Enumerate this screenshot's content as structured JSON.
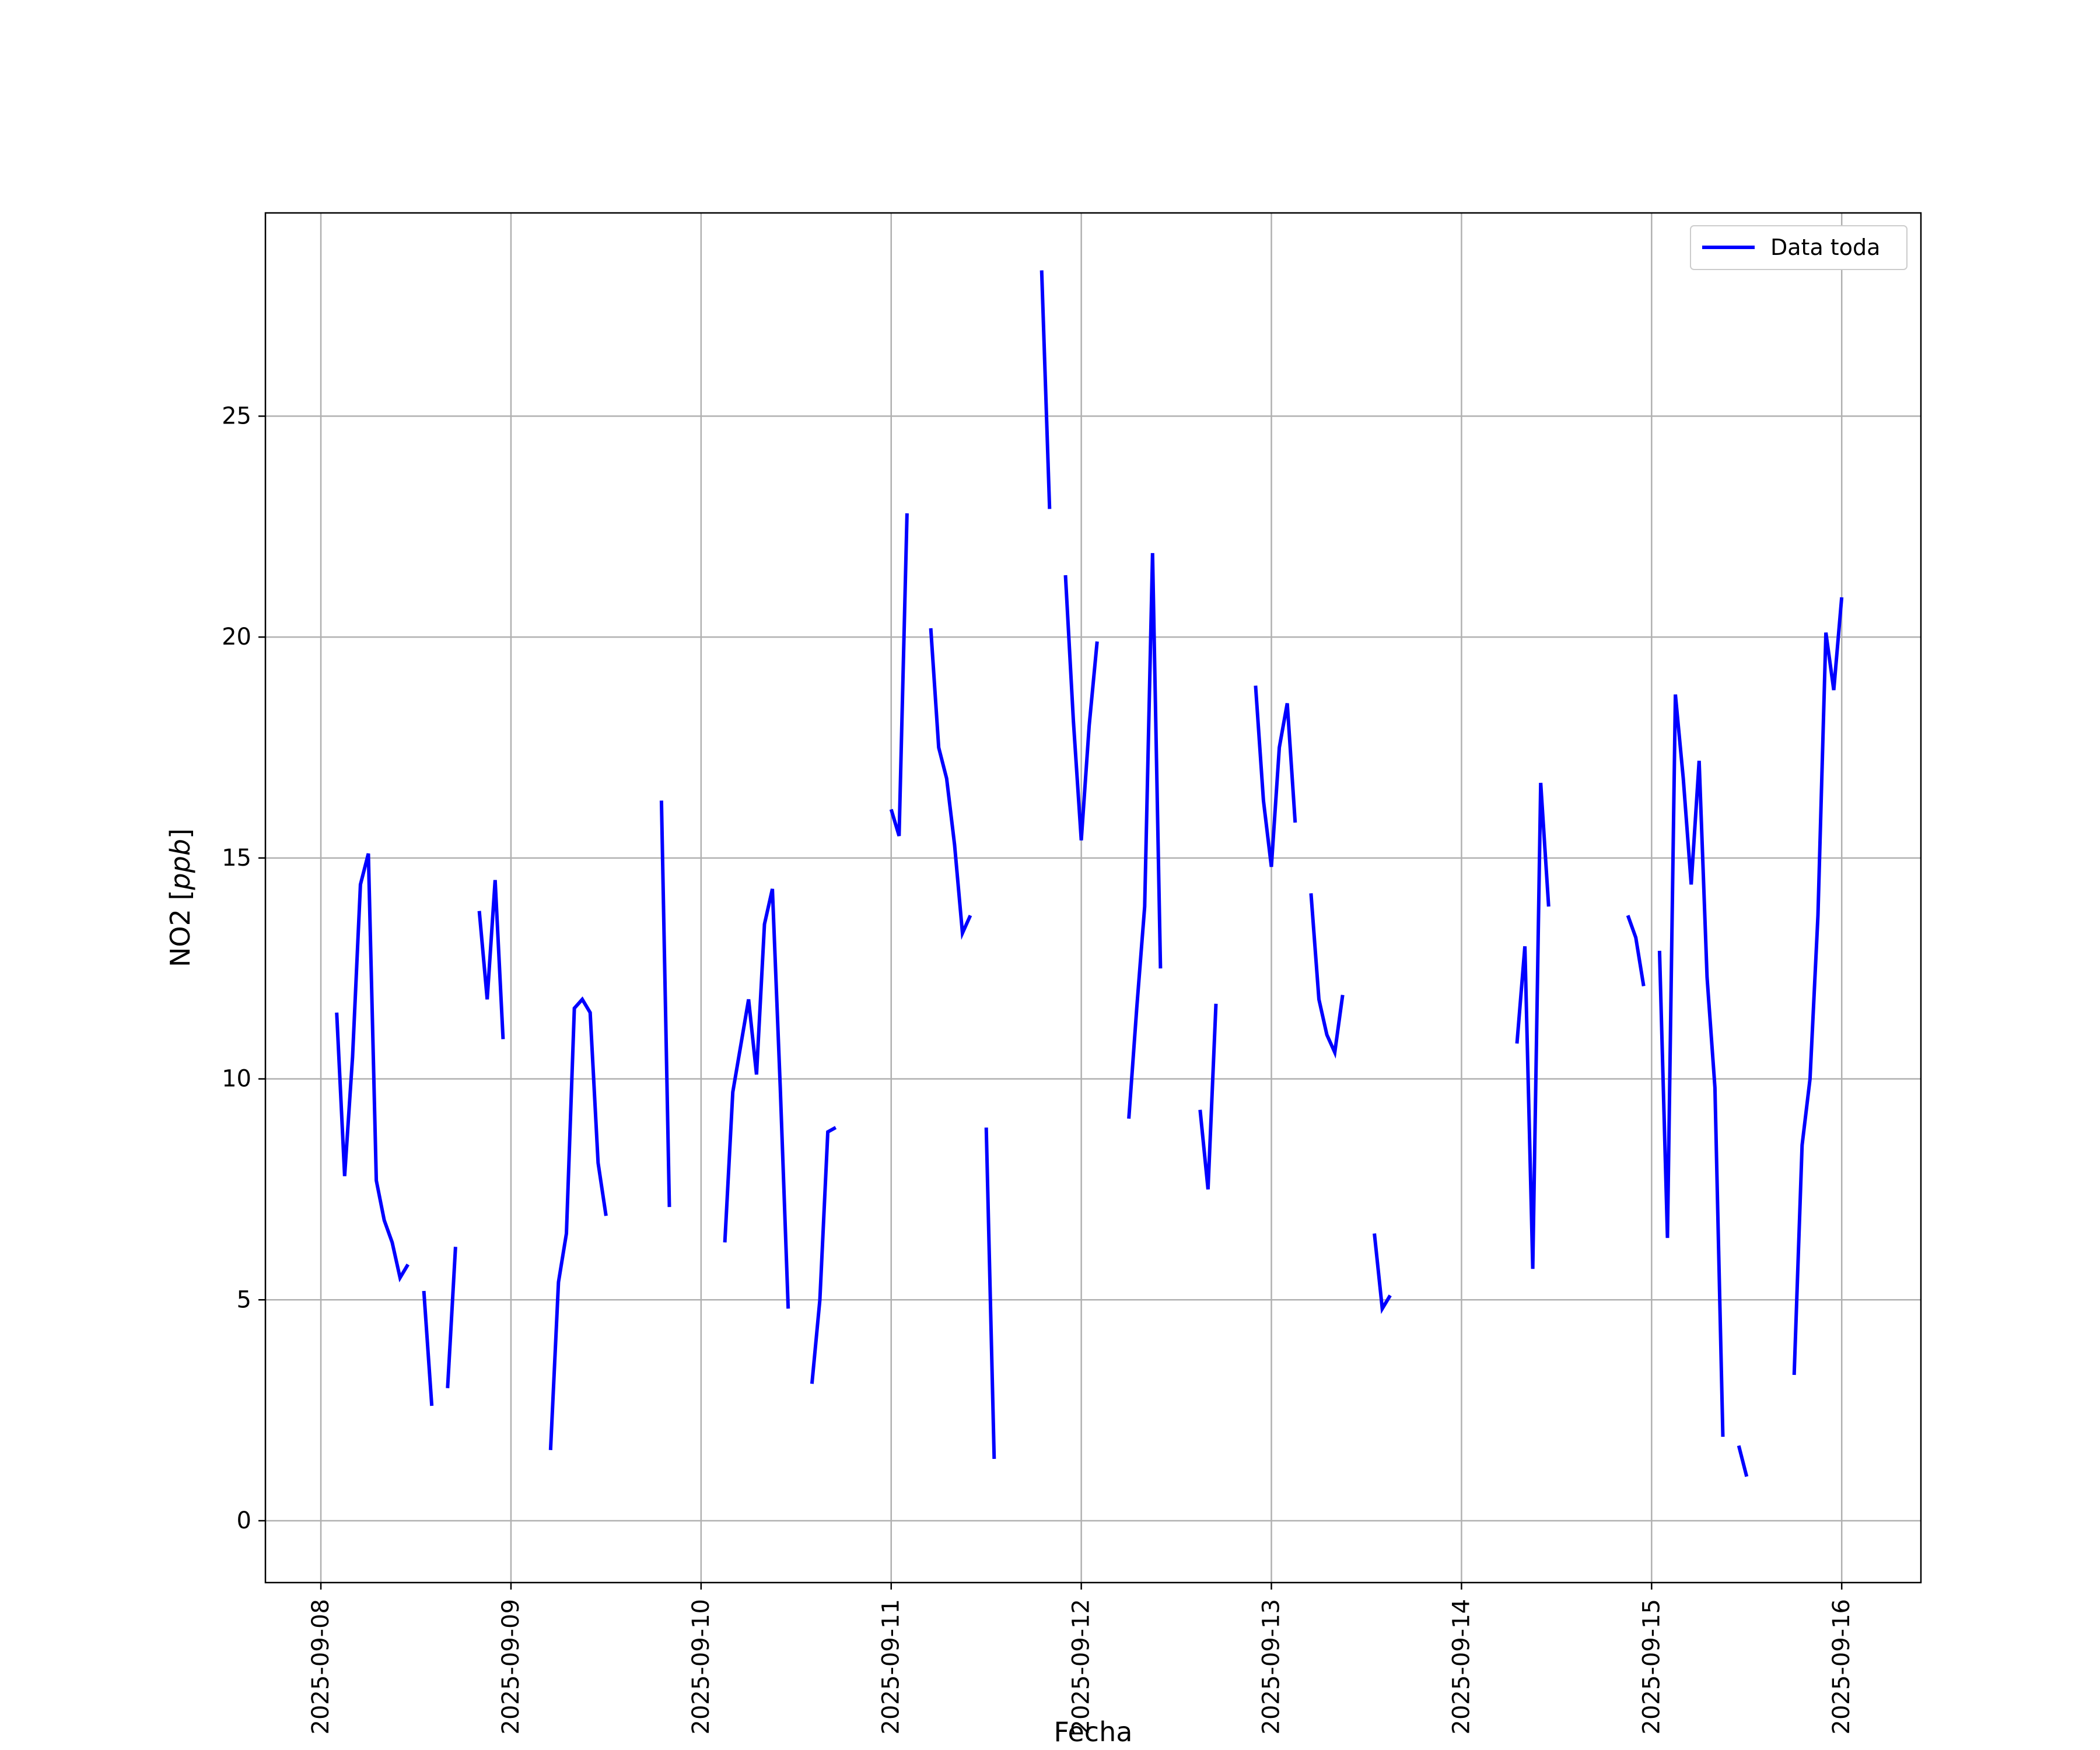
{
  "chart_data": {
    "type": "line",
    "xlabel": "Fecha",
    "ylabel": "NO2 [ppb]",
    "ylabel_parts": {
      "name": "NO2 [",
      "unit": "ppb",
      "close": "]"
    },
    "xlim": [
      "2025-09-07 17:00",
      "2025-09-16 10:00"
    ],
    "ylim": [
      -1.4,
      29.6
    ],
    "x_ticks": [
      "2025-09-08",
      "2025-09-09",
      "2025-09-10",
      "2025-09-11",
      "2025-09-12",
      "2025-09-13",
      "2025-09-14",
      "2025-09-15",
      "2025-09-16"
    ],
    "y_ticks": [
      0,
      5,
      10,
      15,
      20,
      25
    ],
    "grid": true,
    "legend": {
      "position": "top-right",
      "entries": [
        "Data toda"
      ]
    },
    "colors": {
      "series": "#0000ff",
      "grid": "#b0b0b0",
      "frame": "#000000"
    },
    "series": [
      {
        "name": "Data toda",
        "segments": [
          [
            [
              "2025-09-08 02:00",
              11.5
            ],
            [
              "2025-09-08 03:00",
              7.8
            ],
            [
              "2025-09-08 04:00",
              10.5
            ],
            [
              "2025-09-08 05:00",
              14.4
            ],
            [
              "2025-09-08 06:00",
              15.1
            ],
            [
              "2025-09-08 07:00",
              7.7
            ],
            [
              "2025-09-08 08:00",
              6.8
            ],
            [
              "2025-09-08 09:00",
              6.3
            ],
            [
              "2025-09-08 10:00",
              5.5
            ],
            [
              "2025-09-08 11:00",
              5.8
            ]
          ],
          [
            [
              "2025-09-08 13:00",
              5.2
            ],
            [
              "2025-09-08 14:00",
              2.6
            ]
          ],
          [
            [
              "2025-09-08 16:00",
              3.0
            ],
            [
              "2025-09-08 17:00",
              6.2
            ]
          ],
          [
            [
              "2025-09-08 20:00",
              13.8
            ],
            [
              "2025-09-08 21:00",
              11.8
            ],
            [
              "2025-09-08 22:00",
              14.5
            ],
            [
              "2025-09-08 23:00",
              10.9
            ]
          ],
          [
            [
              "2025-09-09 05:00",
              1.6
            ],
            [
              "2025-09-09 06:00",
              5.4
            ],
            [
              "2025-09-09 07:00",
              6.5
            ],
            [
              "2025-09-09 08:00",
              11.6
            ],
            [
              "2025-09-09 09:00",
              11.8
            ],
            [
              "2025-09-09 10:00",
              11.5
            ],
            [
              "2025-09-09 11:00",
              8.1
            ],
            [
              "2025-09-09 12:00",
              6.9
            ]
          ],
          [
            [
              "2025-09-09 19:00",
              16.3
            ],
            [
              "2025-09-09 20:00",
              7.1
            ]
          ],
          [
            [
              "2025-09-10 03:00",
              6.3
            ],
            [
              "2025-09-10 04:00",
              9.7
            ],
            [
              "2025-09-10 06:00",
              11.8
            ],
            [
              "2025-09-10 07:00",
              10.1
            ],
            [
              "2025-09-10 08:00",
              13.5
            ],
            [
              "2025-09-10 09:00",
              14.3
            ],
            [
              "2025-09-10 10:00",
              9.8
            ],
            [
              "2025-09-10 11:00",
              4.8
            ]
          ],
          [
            [
              "2025-09-10 14:00",
              3.1
            ],
            [
              "2025-09-10 15:00",
              5.0
            ],
            [
              "2025-09-10 16:00",
              8.8
            ],
            [
              "2025-09-10 17:00",
              8.9
            ]
          ],
          [
            [
              "2025-09-11 00:00",
              16.1
            ],
            [
              "2025-09-11 01:00",
              15.5
            ],
            [
              "2025-09-11 02:00",
              22.8
            ]
          ],
          [
            [
              "2025-09-11 05:00",
              20.2
            ],
            [
              "2025-09-11 06:00",
              17.5
            ],
            [
              "2025-09-11 07:00",
              16.8
            ],
            [
              "2025-09-11 08:00",
              15.3
            ],
            [
              "2025-09-11 09:00",
              13.3
            ],
            [
              "2025-09-11 10:00",
              13.7
            ]
          ],
          [
            [
              "2025-09-11 12:00",
              8.9
            ],
            [
              "2025-09-11 13:00",
              1.4
            ]
          ],
          [
            [
              "2025-09-11 19:00",
              28.3
            ],
            [
              "2025-09-11 20:00",
              22.9
            ]
          ],
          [
            [
              "2025-09-11 22:00",
              21.4
            ],
            [
              "2025-09-11 23:00",
              18.1
            ],
            [
              "2025-09-12 00:00",
              15.4
            ],
            [
              "2025-09-12 01:00",
              18.0
            ],
            [
              "2025-09-12 02:00",
              19.9
            ]
          ],
          [
            [
              "2025-09-12 06:00",
              9.1
            ],
            [
              "2025-09-12 07:00",
              11.6
            ],
            [
              "2025-09-12 08:00",
              13.9
            ],
            [
              "2025-09-12 09:00",
              21.9
            ],
            [
              "2025-09-12 10:00",
              12.5
            ]
          ],
          [
            [
              "2025-09-12 15:00",
              9.3
            ],
            [
              "2025-09-12 16:00",
              7.5
            ],
            [
              "2025-09-12 17:00",
              11.7
            ]
          ],
          [
            [
              "2025-09-12 22:00",
              18.9
            ],
            [
              "2025-09-12 23:00",
              16.3
            ],
            [
              "2025-09-13 00:00",
              14.8
            ],
            [
              "2025-09-13 01:00",
              17.5
            ],
            [
              "2025-09-13 02:00",
              18.5
            ],
            [
              "2025-09-13 03:00",
              15.8
            ]
          ],
          [
            [
              "2025-09-13 05:00",
              14.2
            ],
            [
              "2025-09-13 06:00",
              11.8
            ],
            [
              "2025-09-13 07:00",
              11.0
            ],
            [
              "2025-09-13 08:00",
              10.6
            ],
            [
              "2025-09-13 09:00",
              11.9
            ]
          ],
          [
            [
              "2025-09-13 13:00",
              6.5
            ],
            [
              "2025-09-13 14:00",
              4.8
            ],
            [
              "2025-09-13 15:00",
              5.1
            ]
          ],
          [
            [
              "2025-09-14 07:00",
              10.8
            ],
            [
              "2025-09-14 08:00",
              13.0
            ],
            [
              "2025-09-14 09:00",
              5.7
            ],
            [
              "2025-09-14 10:00",
              16.7
            ],
            [
              "2025-09-14 11:00",
              13.9
            ]
          ],
          [
            [
              "2025-09-14 21:00",
              13.7
            ],
            [
              "2025-09-14 22:00",
              13.2
            ],
            [
              "2025-09-14 23:00",
              12.1
            ]
          ],
          [
            [
              "2025-09-15 01:00",
              12.9
            ],
            [
              "2025-09-15 02:00",
              6.4
            ],
            [
              "2025-09-15 03:00",
              18.7
            ],
            [
              "2025-09-15 04:00",
              16.8
            ],
            [
              "2025-09-15 05:00",
              14.4
            ],
            [
              "2025-09-15 06:00",
              17.2
            ],
            [
              "2025-09-15 07:00",
              12.3
            ],
            [
              "2025-09-15 08:00",
              9.8
            ],
            [
              "2025-09-15 09:00",
              1.9
            ]
          ],
          [
            [
              "2025-09-15 11:00",
              1.7
            ],
            [
              "2025-09-15 12:00",
              1.0
            ]
          ],
          [
            [
              "2025-09-15 18:00",
              3.3
            ],
            [
              "2025-09-15 19:00",
              8.5
            ],
            [
              "2025-09-15 20:00",
              10.0
            ],
            [
              "2025-09-15 21:00",
              13.7
            ],
            [
              "2025-09-15 22:00",
              20.1
            ],
            [
              "2025-09-15 23:00",
              18.8
            ],
            [
              "2025-09-16 00:00",
              20.9
            ]
          ]
        ]
      }
    ]
  }
}
